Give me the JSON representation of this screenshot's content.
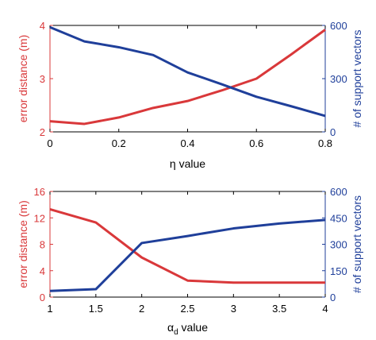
{
  "colors": {
    "error": "#d9383a",
    "vectors": "#1f3f9a",
    "axis": "#000000"
  },
  "chart_data": [
    {
      "type": "line",
      "dual_axis": true,
      "xlabel": "η value",
      "x": [
        0,
        0.1,
        0.2,
        0.3,
        0.4,
        0.5,
        0.6,
        0.7,
        0.8
      ],
      "xlim": [
        0,
        0.8
      ],
      "xticks": [
        "0",
        "0.2",
        "0.4",
        "0.6",
        "0.8"
      ],
      "xtick_values": [
        0,
        0.2,
        0.4,
        0.6,
        0.8
      ],
      "left_axis": {
        "label": "error distance (m)",
        "ylim": [
          2,
          4
        ],
        "ticks": [
          "2",
          "3",
          "4"
        ],
        "tick_values": [
          2,
          3,
          4
        ]
      },
      "right_axis": {
        "label": "# of support vectors",
        "ylim": [
          0,
          600
        ],
        "ticks": [
          "0",
          "300",
          "600"
        ],
        "tick_values": [
          0,
          300,
          600
        ]
      },
      "series": [
        {
          "axis": "left",
          "color": "#d9383a",
          "values": [
            2.2,
            2.15,
            2.27,
            2.45,
            2.58,
            2.78,
            3.0,
            3.45,
            3.92
          ]
        },
        {
          "axis": "right",
          "color": "#1f3f9a",
          "values": [
            590,
            510,
            477,
            433,
            335,
            268,
            198,
            145,
            90
          ]
        }
      ]
    },
    {
      "type": "line",
      "dual_axis": true,
      "xlabel": "αd value",
      "xlabel_main": "α",
      "xlabel_sub": "d",
      "xlabel_suffix": " value",
      "x": [
        1,
        1.5,
        2,
        2.5,
        3,
        3.5,
        4
      ],
      "xlim": [
        1,
        4
      ],
      "xticks": [
        "1",
        "1.5",
        "2",
        "2.5",
        "3",
        "3.5",
        "4"
      ],
      "xtick_values": [
        1,
        1.5,
        2,
        2.5,
        3,
        3.5,
        4
      ],
      "left_axis": {
        "label": "error distance (m)",
        "ylim": [
          0,
          16
        ],
        "ticks": [
          "0",
          "4",
          "8",
          "12",
          "16"
        ],
        "tick_values": [
          0,
          4,
          8,
          12,
          16
        ]
      },
      "right_axis": {
        "label": "# of support vectors",
        "ylim": [
          0,
          600
        ],
        "ticks": [
          "0",
          "150",
          "300",
          "450",
          "600"
        ],
        "tick_values": [
          0,
          150,
          300,
          450,
          600
        ]
      },
      "series": [
        {
          "axis": "left",
          "color": "#d9383a",
          "values": [
            13.3,
            11.3,
            6.0,
            2.5,
            2.2,
            2.2,
            2.2
          ]
        },
        {
          "axis": "right",
          "color": "#1f3f9a",
          "values": [
            35,
            45,
            307,
            347,
            390,
            418,
            438
          ]
        }
      ]
    }
  ]
}
